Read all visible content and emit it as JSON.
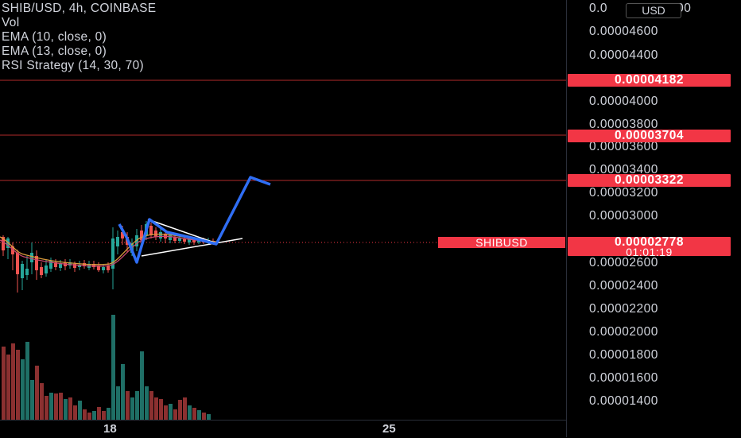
{
  "legend": {
    "symbol": "SHIB/USD, 4h, COINBASE",
    "volume": "Vol",
    "ema1": "EMA (10, close, 0)",
    "ema2": "EMA (13, close, 0)",
    "strategy": "RSI Strategy (14, 30, 70)"
  },
  "price_axis": {
    "currency": "USD",
    "top_partial": "0.0",
    "top_partial_tail": "800",
    "ticks": [
      "0.00004600",
      "0.00004400",
      "0.00004000",
      "0.00003800",
      "0.00003600",
      "0.00003400",
      "0.00003200",
      "0.00003000",
      "0.00002600",
      "0.00002400",
      "0.00002200",
      "0.00002000",
      "0.00001800",
      "0.00001600",
      "0.00001400"
    ],
    "levels": [
      "0.00004182",
      "0.00003704",
      "0.00003322"
    ],
    "current_price": "0.00002778",
    "countdown": "01:01:19"
  },
  "symbol_label": "SHIBUSD",
  "time_axis": {
    "labels": [
      "18",
      "25"
    ]
  },
  "colors": {
    "up": "#26a69a",
    "down": "#ef5350",
    "accent": "#f23645",
    "projection": "#2962ff",
    "vol_up": "#1f6f66",
    "vol_down": "#8b3030"
  }
}
